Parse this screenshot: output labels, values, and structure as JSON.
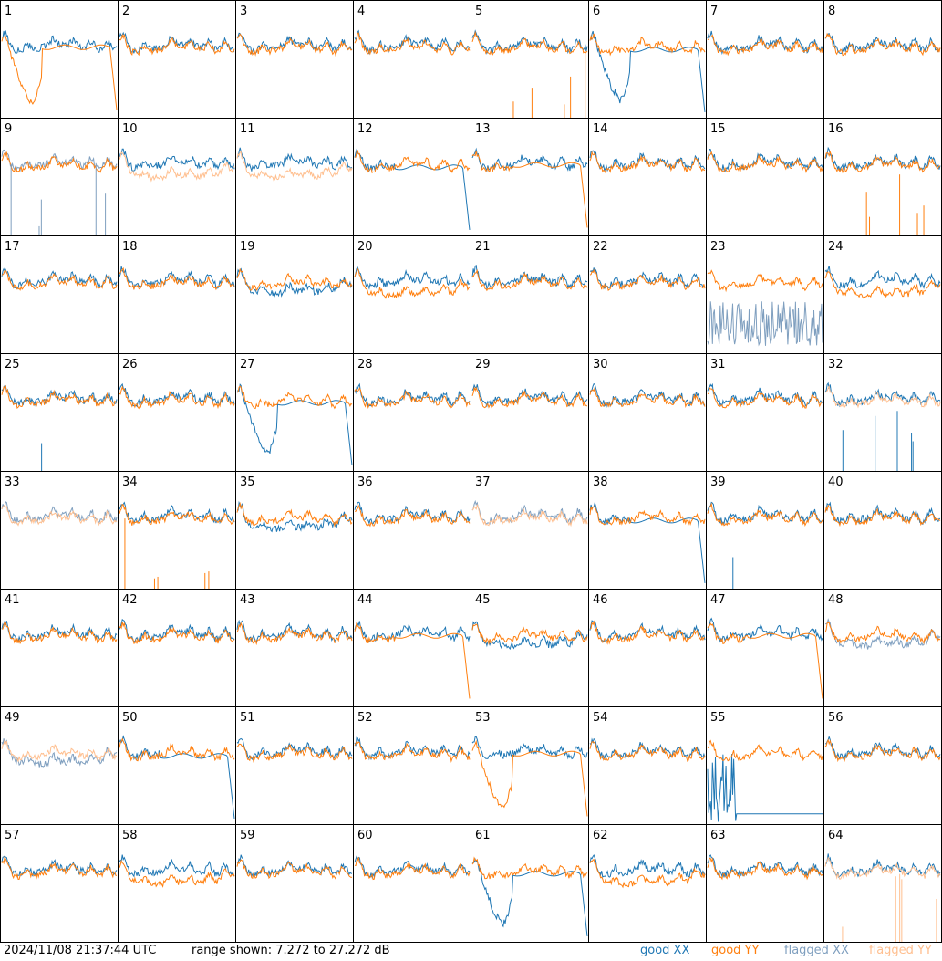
{
  "footer": {
    "timestamp": "2024/11/08 21:37:44 UTC",
    "range": "range shown: 7.272 to 27.272 dB"
  },
  "legend": [
    {
      "label": "good XX",
      "color": "#1f77b4"
    },
    {
      "label": "good YY",
      "color": "#ff7f0e"
    },
    {
      "label": "flagged XX",
      "color": "#7f9fbf"
    },
    {
      "label": "flagged YY",
      "color": "#ffbf8f"
    }
  ],
  "chart_data": {
    "type": "line",
    "ylabel": "dB",
    "ylim": [
      7.272,
      27.272
    ],
    "grid": {
      "rows": 8,
      "cols": 8
    },
    "panels": [
      {
        "id": "1",
        "xx": "good",
        "yy": "good",
        "pattern": "yy-dip"
      },
      {
        "id": "2",
        "xx": "good",
        "yy": "good",
        "pattern": "normal"
      },
      {
        "id": "3",
        "xx": "good",
        "yy": "good",
        "pattern": "normal"
      },
      {
        "id": "4",
        "xx": "good",
        "yy": "good",
        "pattern": "normal"
      },
      {
        "id": "5",
        "xx": "good",
        "yy": "good",
        "pattern": "yy-spikes"
      },
      {
        "id": "6",
        "xx": "good",
        "yy": "good",
        "pattern": "xx-dip"
      },
      {
        "id": "7",
        "xx": "good",
        "yy": "good",
        "pattern": "normal"
      },
      {
        "id": "8",
        "xx": "good",
        "yy": "good",
        "pattern": "normal"
      },
      {
        "id": "9",
        "xx": "flagged",
        "yy": "good",
        "pattern": "xx-spikes"
      },
      {
        "id": "10",
        "xx": "good",
        "yy": "flagged",
        "pattern": "yy-low"
      },
      {
        "id": "11",
        "xx": "good",
        "yy": "flagged",
        "pattern": "yy-low"
      },
      {
        "id": "12",
        "xx": "good",
        "yy": "good",
        "pattern": "xx-dropoff"
      },
      {
        "id": "13",
        "xx": "good",
        "yy": "good",
        "pattern": "yy-dropoff"
      },
      {
        "id": "14",
        "xx": "good",
        "yy": "good",
        "pattern": "normal"
      },
      {
        "id": "15",
        "xx": "good",
        "yy": "good",
        "pattern": "normal"
      },
      {
        "id": "16",
        "xx": "good",
        "yy": "good",
        "pattern": "yy-spikes"
      },
      {
        "id": "17",
        "xx": "good",
        "yy": "good",
        "pattern": "normal"
      },
      {
        "id": "18",
        "xx": "good",
        "yy": "good",
        "pattern": "normal"
      },
      {
        "id": "19",
        "xx": "good",
        "yy": "good",
        "pattern": "xx-low"
      },
      {
        "id": "20",
        "xx": "good",
        "yy": "good",
        "pattern": "yy-low"
      },
      {
        "id": "21",
        "xx": "good",
        "yy": "good",
        "pattern": "normal"
      },
      {
        "id": "22",
        "xx": "good",
        "yy": "good",
        "pattern": "normal"
      },
      {
        "id": "23",
        "xx": "flagged",
        "yy": "good",
        "pattern": "xx-noisy"
      },
      {
        "id": "24",
        "xx": "good",
        "yy": "good",
        "pattern": "yy-low"
      },
      {
        "id": "25",
        "xx": "good",
        "yy": "good",
        "pattern": "xx-spike"
      },
      {
        "id": "26",
        "xx": "good",
        "yy": "good",
        "pattern": "normal"
      },
      {
        "id": "27",
        "xx": "good",
        "yy": "good",
        "pattern": "xx-dip"
      },
      {
        "id": "28",
        "xx": "good",
        "yy": "good",
        "pattern": "normal"
      },
      {
        "id": "29",
        "xx": "good",
        "yy": "good",
        "pattern": "normal"
      },
      {
        "id": "30",
        "xx": "good",
        "yy": "good",
        "pattern": "normal"
      },
      {
        "id": "31",
        "xx": "good",
        "yy": "good",
        "pattern": "normal"
      },
      {
        "id": "32",
        "xx": "good",
        "yy": "flagged",
        "pattern": "xx-spikes"
      },
      {
        "id": "33",
        "xx": "flagged",
        "yy": "flagged",
        "pattern": "normal"
      },
      {
        "id": "34",
        "xx": "good",
        "yy": "good",
        "pattern": "yy-spikes"
      },
      {
        "id": "35",
        "xx": "good",
        "yy": "good",
        "pattern": "xx-low"
      },
      {
        "id": "36",
        "xx": "good",
        "yy": "good",
        "pattern": "normal"
      },
      {
        "id": "37",
        "xx": "flagged",
        "yy": "flagged",
        "pattern": "normal"
      },
      {
        "id": "38",
        "xx": "good",
        "yy": "good",
        "pattern": "xx-dropoff"
      },
      {
        "id": "39",
        "xx": "good",
        "yy": "good",
        "pattern": "xx-spike"
      },
      {
        "id": "40",
        "xx": "good",
        "yy": "good",
        "pattern": "normal"
      },
      {
        "id": "41",
        "xx": "good",
        "yy": "good",
        "pattern": "normal"
      },
      {
        "id": "42",
        "xx": "good",
        "yy": "good",
        "pattern": "normal"
      },
      {
        "id": "43",
        "xx": "good",
        "yy": "good",
        "pattern": "normal"
      },
      {
        "id": "44",
        "xx": "good",
        "yy": "good",
        "pattern": "yy-dropoff"
      },
      {
        "id": "45",
        "xx": "good",
        "yy": "good",
        "pattern": "xx-low"
      },
      {
        "id": "46",
        "xx": "good",
        "yy": "good",
        "pattern": "normal"
      },
      {
        "id": "47",
        "xx": "good",
        "yy": "good",
        "pattern": "yy-dropoff"
      },
      {
        "id": "48",
        "xx": "flagged",
        "yy": "good",
        "pattern": "xx-low"
      },
      {
        "id": "49",
        "xx": "flagged",
        "yy": "flagged",
        "pattern": "xx-low"
      },
      {
        "id": "50",
        "xx": "good",
        "yy": "good",
        "pattern": "xx-dropoff"
      },
      {
        "id": "51",
        "xx": "good",
        "yy": "good",
        "pattern": "normal"
      },
      {
        "id": "52",
        "xx": "good",
        "yy": "good",
        "pattern": "normal"
      },
      {
        "id": "53",
        "xx": "good",
        "yy": "good",
        "pattern": "yy-dip"
      },
      {
        "id": "54",
        "xx": "good",
        "yy": "good",
        "pattern": "normal"
      },
      {
        "id": "55",
        "xx": "good",
        "yy": "good",
        "pattern": "xx-dead"
      },
      {
        "id": "56",
        "xx": "good",
        "yy": "good",
        "pattern": "normal"
      },
      {
        "id": "57",
        "xx": "good",
        "yy": "good",
        "pattern": "normal"
      },
      {
        "id": "58",
        "xx": "good",
        "yy": "good",
        "pattern": "yy-low"
      },
      {
        "id": "59",
        "xx": "good",
        "yy": "good",
        "pattern": "normal"
      },
      {
        "id": "60",
        "xx": "good",
        "yy": "good",
        "pattern": "normal"
      },
      {
        "id": "61",
        "xx": "good",
        "yy": "good",
        "pattern": "xx-dip"
      },
      {
        "id": "62",
        "xx": "good",
        "yy": "good",
        "pattern": "yy-low"
      },
      {
        "id": "63",
        "xx": "good",
        "yy": "good",
        "pattern": "normal"
      },
      {
        "id": "64",
        "xx": "good",
        "yy": "flagged",
        "pattern": "yy-spikes"
      }
    ]
  }
}
